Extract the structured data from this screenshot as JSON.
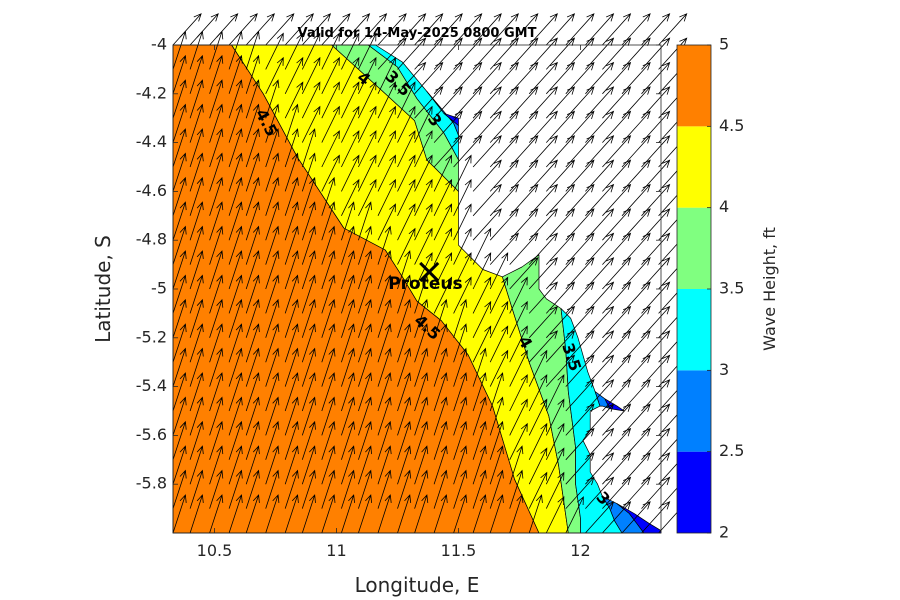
{
  "chart_data": {
    "type": "contourf",
    "title": "Valid for 14-May-2025 0800 GMT",
    "xlabel": "Longitude, E",
    "ylabel": "Latitude, S",
    "colorbar_label": "Wave Height, ft",
    "xlim": [
      10.33,
      12.33
    ],
    "ylim": [
      -6.0,
      -4.0
    ],
    "xticks": [
      10.5,
      11,
      11.5,
      12
    ],
    "xtick_labels": [
      "10.5",
      "11",
      "11.5",
      "12"
    ],
    "yticks": [
      -4,
      -4.2,
      -4.4,
      -4.6,
      -4.8,
      -5,
      -5.2,
      -5.4,
      -5.6,
      -5.8
    ],
    "ytick_labels": [
      "-4",
      "-4.2",
      "-4.4",
      "-4.6",
      "-4.8",
      "-5",
      "-5.2",
      "-5.4",
      "-5.6",
      "-5.8"
    ],
    "colorbar": {
      "levels": [
        2,
        2.5,
        3,
        3.5,
        4,
        4.5,
        5
      ],
      "tick_labels": [
        "2",
        "2.5",
        "3",
        "3.5",
        "4",
        "4.5",
        "5"
      ],
      "colors": [
        "#0000ff",
        "#0080ff",
        "#00ffff",
        "#80ff80",
        "#ffff00",
        "#ff8000"
      ]
    },
    "bands": [
      {
        "range": [
          4.5,
          5.0
        ],
        "color": "#ff8000",
        "polygon": [
          [
            10.33,
            -4.0
          ],
          [
            10.57,
            -4.0
          ],
          [
            10.7,
            -4.2
          ],
          [
            10.84,
            -4.46
          ],
          [
            11.03,
            -4.75
          ],
          [
            11.2,
            -4.84
          ],
          [
            11.27,
            -4.95
          ],
          [
            11.33,
            -5.05
          ],
          [
            11.43,
            -5.13
          ],
          [
            11.54,
            -5.27
          ],
          [
            11.64,
            -5.48
          ],
          [
            11.73,
            -5.78
          ],
          [
            11.83,
            -6.0
          ],
          [
            10.33,
            -6.0
          ]
        ]
      },
      {
        "range": [
          4.0,
          4.5
        ],
        "color": "#ffff00",
        "polygon": [
          [
            10.57,
            -4.0
          ],
          [
            10.98,
            -4.0
          ],
          [
            11.08,
            -4.09
          ],
          [
            11.19,
            -4.19
          ],
          [
            11.32,
            -4.31
          ],
          [
            11.37,
            -4.47
          ],
          [
            11.5,
            -4.6
          ],
          [
            11.5,
            -4.82
          ],
          [
            11.6,
            -4.92
          ],
          [
            11.68,
            -4.95
          ],
          [
            11.72,
            -5.08
          ],
          [
            11.79,
            -5.3
          ],
          [
            11.87,
            -5.52
          ],
          [
            11.91,
            -5.72
          ],
          [
            11.95,
            -6.0
          ],
          [
            11.83,
            -6.0
          ],
          [
            11.73,
            -5.78
          ],
          [
            11.64,
            -5.48
          ],
          [
            11.54,
            -5.27
          ],
          [
            11.43,
            -5.13
          ],
          [
            11.33,
            -5.05
          ],
          [
            11.27,
            -4.95
          ],
          [
            11.2,
            -4.84
          ],
          [
            11.03,
            -4.75
          ],
          [
            10.84,
            -4.46
          ],
          [
            10.7,
            -4.2
          ]
        ]
      },
      {
        "range": [
          3.5,
          4.0
        ],
        "color": "#80ff80",
        "polygon": [
          [
            10.98,
            -4.0
          ],
          [
            11.13,
            -4.0
          ],
          [
            11.25,
            -4.09
          ],
          [
            11.33,
            -4.22
          ],
          [
            11.44,
            -4.36
          ],
          [
            11.5,
            -4.47
          ],
          [
            11.5,
            -4.6
          ],
          [
            11.37,
            -4.47
          ],
          [
            11.32,
            -4.31
          ],
          [
            11.19,
            -4.19
          ],
          [
            11.08,
            -4.09
          ]
        ]
      },
      {
        "range": [
          3.5,
          4.0
        ],
        "color": "#80ff80",
        "polygon": [
          [
            11.68,
            -4.95
          ],
          [
            11.76,
            -4.91
          ],
          [
            11.83,
            -4.86
          ],
          [
            11.83,
            -5.0
          ],
          [
            11.86,
            -5.04
          ],
          [
            11.92,
            -5.08
          ],
          [
            11.94,
            -5.25
          ],
          [
            11.95,
            -5.42
          ],
          [
            11.98,
            -5.65
          ],
          [
            11.98,
            -5.8
          ],
          [
            12.0,
            -5.94
          ],
          [
            12.0,
            -6.0
          ],
          [
            11.95,
            -6.0
          ],
          [
            11.91,
            -5.72
          ],
          [
            11.87,
            -5.52
          ],
          [
            11.79,
            -5.3
          ],
          [
            11.72,
            -5.08
          ]
        ]
      },
      {
        "range": [
          3.0,
          3.5
        ],
        "color": "#00ffff",
        "polygon": [
          [
            11.13,
            -4.0
          ],
          [
            11.16,
            -4.0
          ],
          [
            11.27,
            -4.07
          ],
          [
            11.37,
            -4.19
          ],
          [
            11.48,
            -4.32
          ],
          [
            11.5,
            -4.37
          ],
          [
            11.5,
            -4.47
          ],
          [
            11.44,
            -4.36
          ],
          [
            11.33,
            -4.22
          ],
          [
            11.25,
            -4.09
          ]
        ]
      },
      {
        "range": [
          3.0,
          3.5
        ],
        "color": "#00ffff",
        "polygon": [
          [
            11.92,
            -5.08
          ],
          [
            11.96,
            -5.12
          ],
          [
            11.99,
            -5.2
          ],
          [
            12.03,
            -5.34
          ],
          [
            12.06,
            -5.42
          ],
          [
            12.08,
            -5.48
          ],
          [
            12.04,
            -5.5
          ],
          [
            12.04,
            -5.58
          ],
          [
            12.01,
            -5.62
          ],
          [
            12.04,
            -5.68
          ],
          [
            12.04,
            -5.75
          ],
          [
            12.07,
            -5.8
          ],
          [
            12.09,
            -5.85
          ],
          [
            12.12,
            -5.9
          ],
          [
            12.14,
            -5.95
          ],
          [
            12.17,
            -6.0
          ],
          [
            12.0,
            -6.0
          ],
          [
            12.0,
            -5.94
          ],
          [
            11.98,
            -5.8
          ],
          [
            11.98,
            -5.65
          ],
          [
            11.95,
            -5.42
          ],
          [
            11.94,
            -5.25
          ]
        ]
      },
      {
        "range": [
          2.5,
          3.0
        ],
        "color": "#0080ff",
        "polygon": [
          [
            11.37,
            -4.19
          ],
          [
            11.44,
            -4.28
          ],
          [
            11.5,
            -4.33
          ],
          [
            11.5,
            -4.37
          ],
          [
            11.48,
            -4.32
          ]
        ]
      },
      {
        "range": [
          2.5,
          3.0
        ],
        "color": "#0080ff",
        "polygon": [
          [
            12.06,
            -5.42
          ],
          [
            12.1,
            -5.45
          ],
          [
            12.12,
            -5.49
          ],
          [
            12.09,
            -5.48
          ],
          [
            12.08,
            -5.48
          ]
        ]
      },
      {
        "range": [
          2.5,
          3.0
        ],
        "color": "#0080ff",
        "polygon": [
          [
            12.09,
            -5.85
          ],
          [
            12.15,
            -5.88
          ],
          [
            12.2,
            -5.92
          ],
          [
            12.23,
            -5.96
          ],
          [
            12.26,
            -6.0
          ],
          [
            12.17,
            -6.0
          ],
          [
            12.14,
            -5.95
          ],
          [
            12.12,
            -5.9
          ]
        ]
      },
      {
        "range": [
          2.0,
          2.5
        ],
        "color": "#0000ff",
        "polygon": [
          [
            11.44,
            -4.28
          ],
          [
            11.5,
            -4.3
          ],
          [
            11.5,
            -4.33
          ]
        ]
      },
      {
        "range": [
          2.0,
          2.5
        ],
        "color": "#0000ff",
        "polygon": [
          [
            12.1,
            -5.45
          ],
          [
            12.15,
            -5.48
          ],
          [
            12.18,
            -5.5
          ],
          [
            12.12,
            -5.49
          ]
        ]
      },
      {
        "range": [
          2.0,
          2.5
        ],
        "color": "#0000ff",
        "polygon": [
          [
            12.15,
            -5.88
          ],
          [
            12.22,
            -5.92
          ],
          [
            12.28,
            -5.96
          ],
          [
            12.33,
            -5.99
          ],
          [
            12.33,
            -6.0
          ],
          [
            12.26,
            -6.0
          ],
          [
            12.23,
            -5.96
          ],
          [
            12.2,
            -5.92
          ]
        ]
      }
    ],
    "contour_labels": [
      {
        "text": "4.5",
        "x": 10.71,
        "y": -4.32,
        "rotation": 62
      },
      {
        "text": "4.5",
        "x": 11.37,
        "y": -5.16,
        "rotation": 42
      },
      {
        "text": "4",
        "x": 11.11,
        "y": -4.14,
        "rotation": 38
      },
      {
        "text": "4",
        "x": 11.77,
        "y": -5.22,
        "rotation": 60
      },
      {
        "text": "3.5",
        "x": 11.25,
        "y": -4.16,
        "rotation": 45
      },
      {
        "text": "3.5",
        "x": 11.96,
        "y": -5.28,
        "rotation": 72
      },
      {
        "text": "3",
        "x": 11.4,
        "y": -4.31,
        "rotation": 55
      },
      {
        "text": "3",
        "x": 12.09,
        "y": -5.86,
        "rotation": 48
      }
    ],
    "station": {
      "name": "Proteus",
      "lon": 11.38,
      "lat": -4.93
    },
    "vectors": {
      "x": [
        10.33,
        10.4,
        10.48,
        10.56,
        10.63,
        10.71,
        10.79,
        10.86,
        10.94,
        11.02,
        11.09,
        11.17,
        11.25,
        11.32,
        11.4,
        11.48,
        11.56,
        11.63,
        11.71,
        11.79,
        11.86,
        11.94,
        12.02,
        12.09,
        12.17,
        12.25,
        12.32
      ],
      "y": [
        -4.0,
        -4.1,
        -4.2,
        -4.3,
        -4.4,
        -4.5,
        -4.6,
        -4.7,
        -4.8,
        -4.9,
        -5.0,
        -5.1,
        -5.2,
        -5.3,
        -5.4,
        -5.5,
        -5.6,
        -5.7,
        -5.8,
        -5.9,
        -6.0
      ]
    }
  }
}
